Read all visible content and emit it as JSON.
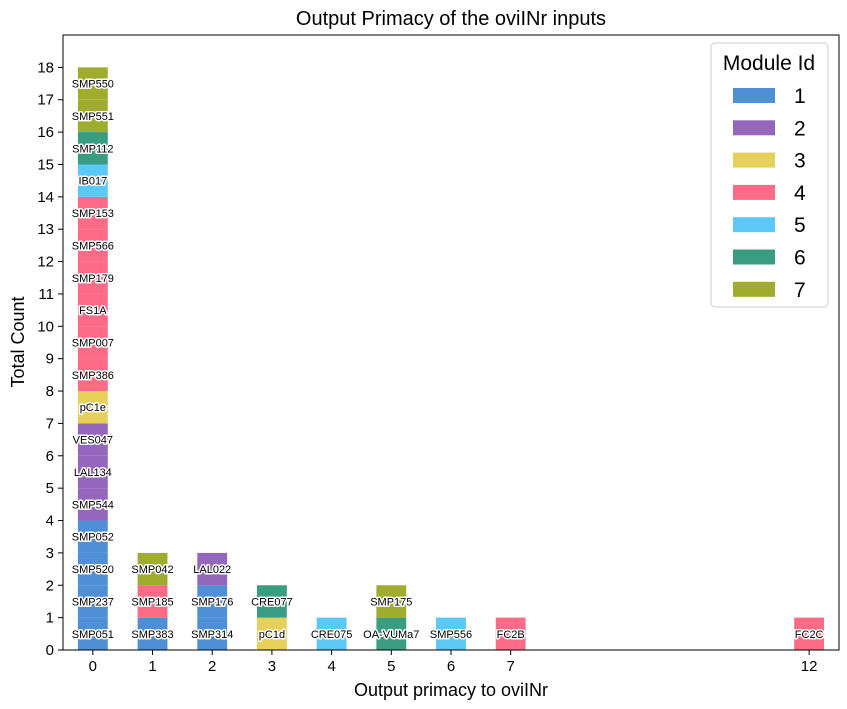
{
  "chart_data": {
    "type": "bar",
    "stacked": true,
    "title": "Output Primacy of the oviINr inputs",
    "xlabel": "Output primacy to oviINr",
    "ylabel": "Total Count",
    "ylim": [
      0,
      19
    ],
    "yticks": [
      0,
      1,
      2,
      3,
      4,
      5,
      6,
      7,
      8,
      9,
      10,
      11,
      12,
      13,
      14,
      15,
      16,
      17,
      18
    ],
    "x_categories": [
      "0",
      "1",
      "2",
      "3",
      "4",
      "5",
      "6",
      "7",
      "12"
    ],
    "legend": {
      "title": "Module Id",
      "position": "top-right",
      "entries": [
        {
          "label": "1",
          "color": "#4e8fd6"
        },
        {
          "label": "2",
          "color": "#9467bd"
        },
        {
          "label": "3",
          "color": "#e6d05a"
        },
        {
          "label": "4",
          "color": "#fd6b86"
        },
        {
          "label": "5",
          "color": "#5bc8f5"
        },
        {
          "label": "6",
          "color": "#3a9c80"
        },
        {
          "label": "7",
          "color": "#a0ac2e"
        }
      ]
    },
    "stacks": [
      {
        "x": "0",
        "segments": [
          {
            "label": "SMP051",
            "module": "1",
            "count": 1
          },
          {
            "label": "SMP237",
            "module": "1",
            "count": 1
          },
          {
            "label": "SMP520",
            "module": "1",
            "count": 1
          },
          {
            "label": "SMP052",
            "module": "1",
            "count": 1
          },
          {
            "label": "SMP544",
            "module": "2",
            "count": 1
          },
          {
            "label": "LAL134",
            "module": "2",
            "count": 1
          },
          {
            "label": "VES047",
            "module": "2",
            "count": 1
          },
          {
            "label": "pC1e",
            "module": "3",
            "count": 1
          },
          {
            "label": "SMP386",
            "module": "4",
            "count": 1
          },
          {
            "label": "SMP007",
            "module": "4",
            "count": 1
          },
          {
            "label": "FS1A",
            "module": "4",
            "count": 1
          },
          {
            "label": "SMP179",
            "module": "4",
            "count": 1
          },
          {
            "label": "SMP566",
            "module": "4",
            "count": 1
          },
          {
            "label": "SMP153",
            "module": "4",
            "count": 1
          },
          {
            "label": "IB017",
            "module": "5",
            "count": 1
          },
          {
            "label": "SMP112",
            "module": "6",
            "count": 1
          },
          {
            "label": "SMP551",
            "module": "7",
            "count": 1
          },
          {
            "label": "SMP550",
            "module": "7",
            "count": 1
          }
        ]
      },
      {
        "x": "1",
        "segments": [
          {
            "label": "SMP383",
            "module": "1",
            "count": 1
          },
          {
            "label": "SMP185",
            "module": "4",
            "count": 1
          },
          {
            "label": "SMP042",
            "module": "7",
            "count": 1
          }
        ]
      },
      {
        "x": "2",
        "segments": [
          {
            "label": "SMP314",
            "module": "1",
            "count": 1
          },
          {
            "label": "SMP176",
            "module": "1",
            "count": 1
          },
          {
            "label": "LAL022",
            "module": "2",
            "count": 1
          }
        ]
      },
      {
        "x": "3",
        "segments": [
          {
            "label": "pC1d",
            "module": "3",
            "count": 1
          },
          {
            "label": "CRE077",
            "module": "6",
            "count": 1
          }
        ]
      },
      {
        "x": "4",
        "segments": [
          {
            "label": "CRE075",
            "module": "5",
            "count": 1
          }
        ]
      },
      {
        "x": "5",
        "segments": [
          {
            "label": "OA-VUMa7",
            "module": "6",
            "count": 1
          },
          {
            "label": "SMP175",
            "module": "7",
            "count": 1
          }
        ]
      },
      {
        "x": "6",
        "segments": [
          {
            "label": "SMP556",
            "module": "5",
            "count": 1
          }
        ]
      },
      {
        "x": "7",
        "segments": [
          {
            "label": "FC2B",
            "module": "4",
            "count": 1
          }
        ]
      },
      {
        "x": "12",
        "segments": [
          {
            "label": "FC2C",
            "module": "4",
            "count": 1
          }
        ]
      }
    ]
  }
}
